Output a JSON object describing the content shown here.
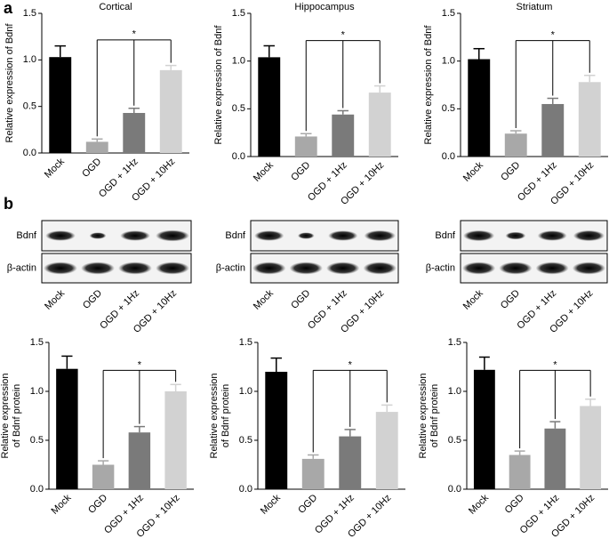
{
  "panel_labels": [
    "a",
    "b"
  ],
  "chart_data": [
    {
      "type": "bar",
      "title": "Cortical",
      "y_label": [
        "Relative expression of Bdnf"
      ],
      "categories": [
        "Mock",
        "OGD",
        "OGD + 1Hz",
        "OGD + 10Hz"
      ],
      "values": [
        1.03,
        0.12,
        0.43,
        0.89
      ],
      "errors": [
        0.12,
        0.03,
        0.05,
        0.05
      ],
      "colors": [
        "#000000",
        "#a8a8a8",
        "#7a7a7a",
        "#d2d2d2"
      ],
      "ylim": [
        0,
        1.5
      ],
      "yticks": [
        {
          "value": 0,
          "label": "0.0"
        },
        {
          "value": 0.5,
          "label": "0.5"
        },
        {
          "value": 1,
          "label": "1.0"
        },
        {
          "value": 1.5,
          "label": "1.5"
        }
      ],
      "annotation": "*"
    },
    {
      "type": "bar",
      "title": "Hippocampus",
      "y_label": [
        "Relative expression of Bdnf"
      ],
      "categories": [
        "Mock",
        "OGD",
        "OGD + 1Hz",
        "OGD + 10Hz"
      ],
      "values": [
        1.04,
        0.21,
        0.44,
        0.67
      ],
      "errors": [
        0.12,
        0.03,
        0.04,
        0.07
      ],
      "colors": [
        "#000000",
        "#a8a8a8",
        "#7a7a7a",
        "#d2d2d2"
      ],
      "ylim": [
        0,
        1.5
      ],
      "yticks": [
        {
          "value": 0,
          "label": "0.0"
        },
        {
          "value": 0.5,
          "label": "0.5"
        },
        {
          "value": 1,
          "label": "1.0"
        },
        {
          "value": 1.5,
          "label": "1.5"
        }
      ],
      "annotation": "*"
    },
    {
      "type": "bar",
      "title": "Striatum",
      "y_label": [
        "Relative expression of Bdnf"
      ],
      "categories": [
        "Mock",
        "OGD",
        "OGD + 1Hz",
        "OGD + 10Hz"
      ],
      "values": [
        1.02,
        0.24,
        0.55,
        0.78
      ],
      "errors": [
        0.11,
        0.03,
        0.06,
        0.07
      ],
      "colors": [
        "#000000",
        "#a8a8a8",
        "#7a7a7a",
        "#d2d2d2"
      ],
      "ylim": [
        0,
        1.5
      ],
      "yticks": [
        {
          "value": 0,
          "label": "0.0"
        },
        {
          "value": 0.5,
          "label": "0.5"
        },
        {
          "value": 1,
          "label": "1.0"
        },
        {
          "value": 1.5,
          "label": "1.5"
        }
      ],
      "annotation": "*"
    },
    {
      "type": "bar",
      "y_label": [
        "Relative expression",
        "of Bdnf protein"
      ],
      "categories": [
        "Mock",
        "OGD",
        "OGD + 1Hz",
        "OGD + 10Hz"
      ],
      "values": [
        1.23,
        0.25,
        0.58,
        1.0
      ],
      "errors": [
        0.13,
        0.04,
        0.06,
        0.07
      ],
      "colors": [
        "#000000",
        "#a8a8a8",
        "#7a7a7a",
        "#d2d2d2"
      ],
      "ylim": [
        0,
        1.5
      ],
      "yticks": [
        {
          "value": 0,
          "label": "0.0"
        },
        {
          "value": 0.5,
          "label": "0.5"
        },
        {
          "value": 1,
          "label": "1.0"
        },
        {
          "value": 1.5,
          "label": "1.5"
        }
      ],
      "annotation": "*"
    },
    {
      "type": "bar",
      "y_label": [
        "Relative expression",
        "of Bdnf protein"
      ],
      "categories": [
        "Mock",
        "OGD",
        "OGD + 1Hz",
        "OGD + 10Hz"
      ],
      "values": [
        1.2,
        0.31,
        0.54,
        0.79
      ],
      "errors": [
        0.14,
        0.04,
        0.07,
        0.07
      ],
      "colors": [
        "#000000",
        "#a8a8a8",
        "#7a7a7a",
        "#d2d2d2"
      ],
      "ylim": [
        0,
        1.5
      ],
      "yticks": [
        {
          "value": 0,
          "label": "0.0"
        },
        {
          "value": 0.5,
          "label": "0.5"
        },
        {
          "value": 1,
          "label": "1.0"
        },
        {
          "value": 1.5,
          "label": "1.5"
        }
      ],
      "annotation": "*"
    },
    {
      "type": "bar",
      "y_label": [
        "Relative expression",
        "of Bdnf protein"
      ],
      "categories": [
        "Mock",
        "OGD",
        "OGD + 1Hz",
        "OGD + 10Hz"
      ],
      "values": [
        1.22,
        0.35,
        0.62,
        0.85
      ],
      "errors": [
        0.13,
        0.04,
        0.07,
        0.07
      ],
      "colors": [
        "#000000",
        "#a8a8a8",
        "#7a7a7a",
        "#d2d2d2"
      ],
      "ylim": [
        0,
        1.5
      ],
      "yticks": [
        {
          "value": 0,
          "label": "0.0"
        },
        {
          "value": 0.5,
          "label": "0.5"
        },
        {
          "value": 1,
          "label": "1.0"
        },
        {
          "value": 1.5,
          "label": "1.5"
        }
      ],
      "annotation": "*"
    }
  ],
  "blots": [
    {
      "rows": [
        "Bdnf",
        "β-actin"
      ],
      "categories": [
        "Mock",
        "OGD",
        "OGD + 1Hz",
        "OGD + 10Hz"
      ]
    },
    {
      "rows": [
        "Bdnf",
        "β-actin"
      ],
      "categories": [
        "Mock",
        "OGD",
        "OGD + 1Hz",
        "OGD + 10Hz"
      ]
    },
    {
      "rows": [
        "Bdnf",
        "β-actin"
      ],
      "categories": [
        "Mock",
        "OGD",
        "OGD + 1Hz",
        "OGD + 10Hz"
      ]
    }
  ]
}
